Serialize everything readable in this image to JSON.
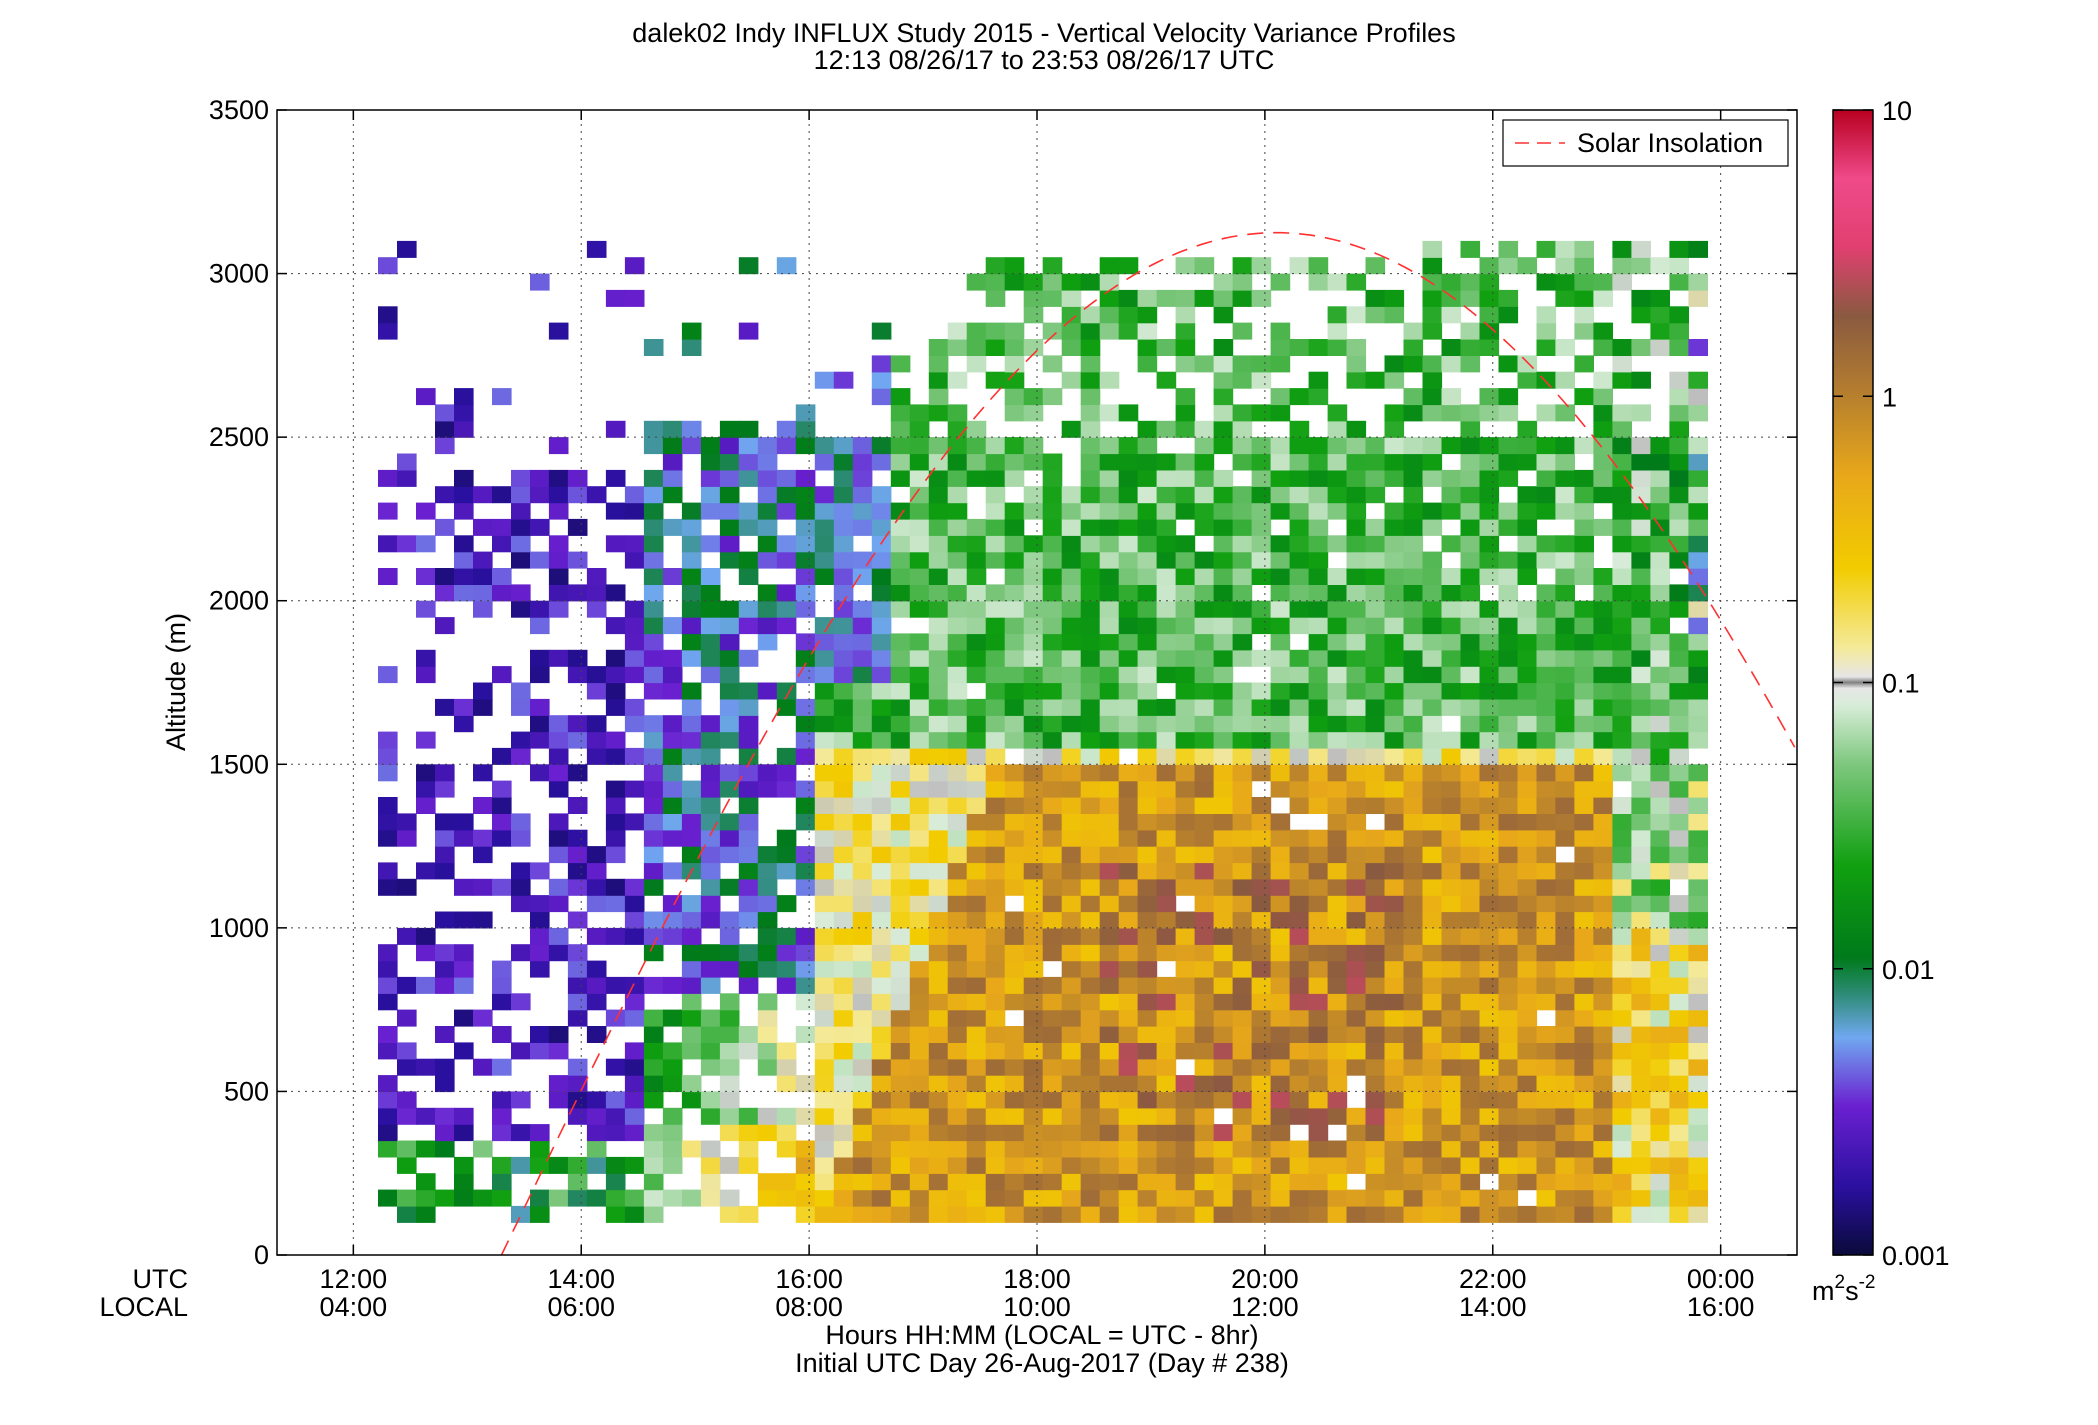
{
  "header": {
    "title_line1": "dalek02 Indy INFLUX Study 2015 - Vertical Velocity Variance Profiles",
    "title_line2": "12:13 08/26/17 to 23:53 08/26/17  UTC"
  },
  "footer": {
    "xlabel": "Hours HH:MM  (LOCAL = UTC - 8hr)",
    "day_label": "Initial UTC Day 26-Aug-2017 (Day # 238)",
    "utc_row_label": "UTC",
    "local_row_label": "LOCAL"
  },
  "legend": {
    "entry": "Solar Insolation"
  },
  "colorbar": {
    "unit_base": "m",
    "unit_sup1": "2",
    "unit_mid": "s",
    "unit_sup2": "-2",
    "tick_labels": [
      "10",
      "1",
      "0.1",
      "0.01",
      "0.001"
    ],
    "scale": "log"
  },
  "chart_data": {
    "type": "heatmap",
    "title": "dalek02 Indy INFLUX Study 2015 - Vertical Velocity Variance Profiles",
    "subtitle": "12:13 08/26/17 to 23:53 08/26/17  UTC",
    "ylabel": "Altitude (m)",
    "xlabel": "Hours HH:MM  (LOCAL = UTC - 8hr)",
    "xlim_utc_hours": [
      11.33,
      24.67
    ],
    "ylim": [
      0,
      3500
    ],
    "grid": true,
    "x_ticks_utc": [
      "12:00",
      "14:00",
      "16:00",
      "18:00",
      "20:00",
      "22:00",
      "00:00"
    ],
    "x_ticks_local": [
      "04:00",
      "06:00",
      "08:00",
      "10:00",
      "12:00",
      "14:00",
      "16:00"
    ],
    "x_tick_hours": [
      12,
      14,
      16,
      18,
      20,
      22,
      24
    ],
    "y_ticks": [
      0,
      500,
      1000,
      1500,
      2000,
      2500,
      3000,
      3500
    ],
    "color_scale": {
      "min": 0.001,
      "max": 10,
      "log": true,
      "unit": "m2s-2"
    },
    "series": [
      {
        "name": "Solar Insolation",
        "style": "dashed",
        "color": "#ff3030",
        "peak_utc_hour": 20.1,
        "peak_altitude": 3125,
        "half_width_hours": 6.8
      }
    ],
    "regions": [
      {
        "description": "stable low variance",
        "utc_start": 12.2,
        "utc_end": 14.4,
        "alt_start": 100,
        "alt_end": 2550,
        "log10_var": -2.8
      },
      {
        "description": "morning transition",
        "utc_start": 14.4,
        "utc_end": 16.0,
        "alt_start": 100,
        "alt_end": 2300,
        "log10_var": -2.2
      },
      {
        "description": "convective boundary layer",
        "utc_start": 16.0,
        "utc_end": 23.0,
        "alt_start": 100,
        "alt_end": 1500,
        "log10_var": -0.3
      },
      {
        "description": "upper mixed layer",
        "utc_start": 16.5,
        "utc_end": 23.8,
        "alt_start": 1500,
        "alt_end": 2900,
        "log10_var": -1.4
      },
      {
        "description": "afternoon decay",
        "utc_start": 23.0,
        "utc_end": 23.9,
        "alt_start": 100,
        "alt_end": 2500,
        "log10_var": -1.3
      }
    ]
  },
  "colors": {
    "grid": "#444444",
    "solar": "#ff3030",
    "background": "#ffffff"
  }
}
